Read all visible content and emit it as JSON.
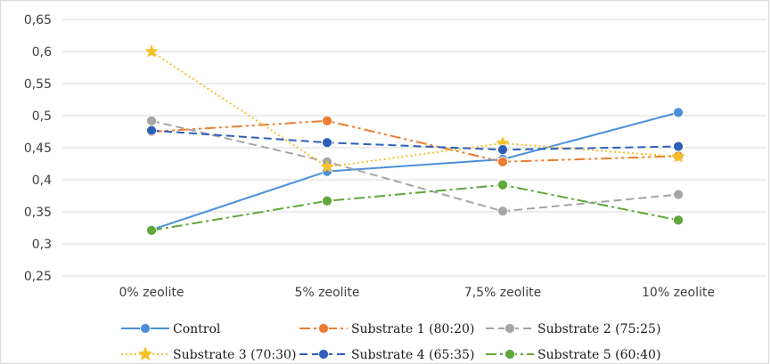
{
  "chart_data": {
    "type": "line",
    "title": "",
    "xlabel": "",
    "ylabel": "",
    "categories": [
      "0% zeolite",
      "5% zeolite",
      "7,5% zeolite",
      "10% zeolite"
    ],
    "ylim": [
      0.25,
      0.65
    ],
    "yticks": [
      0.25,
      0.3,
      0.35,
      0.4,
      0.45,
      0.5,
      0.55,
      0.6,
      0.65
    ],
    "ytick_labels": [
      "0,25",
      "0,3",
      "0,35",
      "0,4",
      "0,45",
      "0,5",
      "0,55",
      "0,6",
      "0,65"
    ],
    "grid": "horizontal",
    "legend_position": "bottom",
    "series": [
      {
        "name": "Control",
        "values": [
          0.322,
          0.413,
          0.432,
          0.505
        ],
        "color": "#4A8FD8",
        "dash": "solid",
        "marker": "circle"
      },
      {
        "name": "Substrate 1 (80:20)",
        "values": [
          0.475,
          0.492,
          0.428,
          0.437
        ],
        "color": "#ED7D31",
        "dash": "dashdotdot",
        "marker": "circle"
      },
      {
        "name": "Substrate 2 (75:25)",
        "values": [
          0.492,
          0.428,
          0.351,
          0.377
        ],
        "color": "#A5A5A5",
        "dash": "dashed",
        "marker": "circle"
      },
      {
        "name": "Substrate 3 (70:30)",
        "values": [
          0.6,
          0.42,
          0.457,
          0.436
        ],
        "color": "#F5C12A",
        "dash": "dotted",
        "marker": "star"
      },
      {
        "name": "Substrate 4 (65:35)",
        "values": [
          0.477,
          0.458,
          0.447,
          0.452
        ],
        "color": "#2E5FB8",
        "dash": "dashed",
        "marker": "circle"
      },
      {
        "name": "Substrate 5 (60:40)",
        "values": [
          0.321,
          0.367,
          0.392,
          0.337
        ],
        "color": "#5FA83A",
        "dash": "dashdot",
        "marker": "circle"
      }
    ]
  }
}
